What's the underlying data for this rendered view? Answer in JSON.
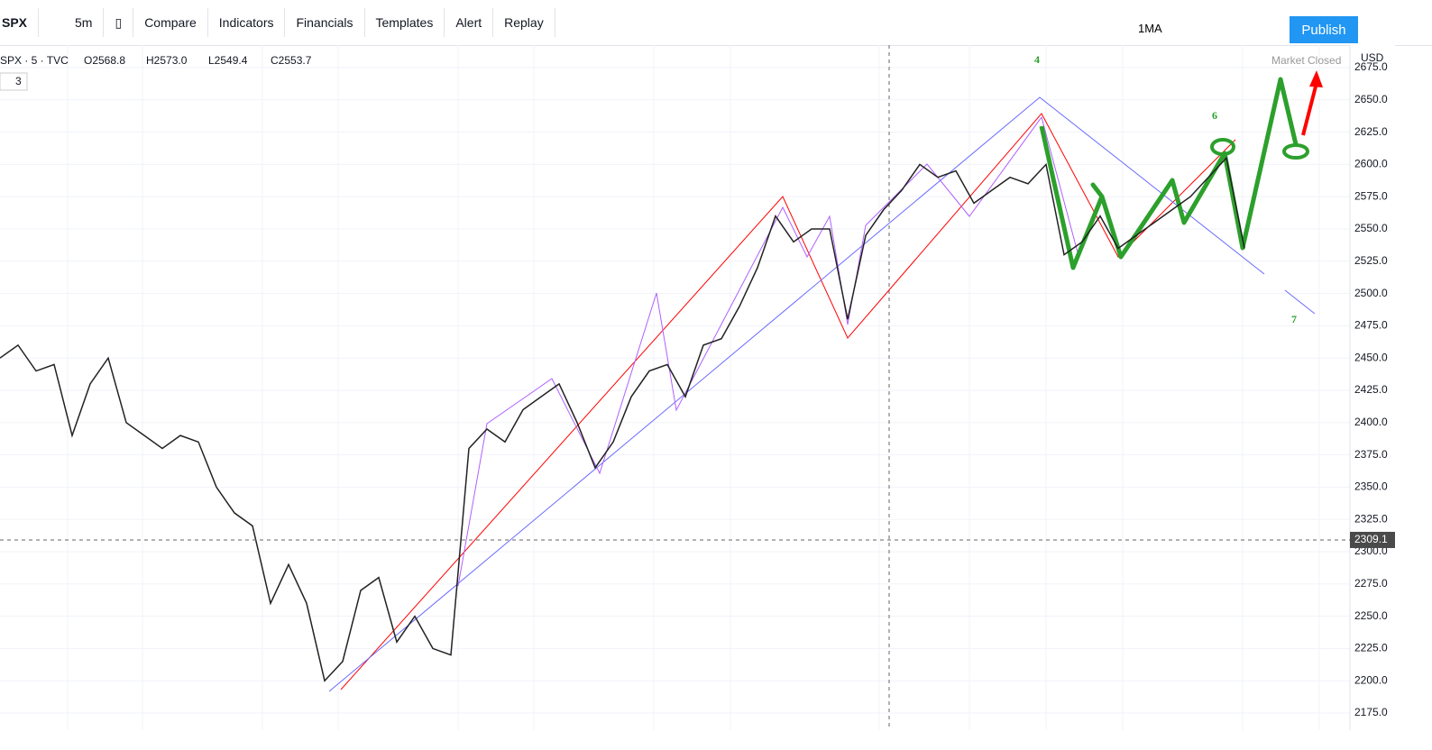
{
  "toolbar": {
    "symbol": "SPX",
    "interval": "5m",
    "items": [
      "Compare",
      "Indicators",
      "Financials",
      "Templates",
      "Alert",
      "Replay"
    ],
    "indicator": "1MA",
    "publish": "Publish"
  },
  "legend": {
    "title": "SPX · 5 · TVC",
    "ohlc": [
      "O2568.8",
      "H2573.0",
      "L2549.4",
      "C2553.7"
    ],
    "count": "3"
  },
  "status": {
    "market": "Market Closed",
    "currency": "USD"
  },
  "annotations": [
    "4",
    "6",
    "7"
  ],
  "crosshair": {
    "value": 2309.1,
    "label": "2309.1"
  },
  "price_axis": {
    "ylim": [
      2175,
      2675
    ],
    "ticks": [
      {
        "value": 2175,
        "label": "2175.0"
      },
      {
        "value": 2200,
        "label": "2200.0"
      },
      {
        "value": 2225,
        "label": "2225.0"
      },
      {
        "value": 2250,
        "label": "2250.0"
      },
      {
        "value": 2275,
        "label": "2275.0"
      },
      {
        "value": 2300,
        "label": "2300.0"
      },
      {
        "value": 2325,
        "label": "2325.0"
      },
      {
        "value": 2350,
        "label": "2350.0"
      },
      {
        "value": 2375,
        "label": "2375.0"
      },
      {
        "value": 2400,
        "label": "2400.0"
      },
      {
        "value": 2425,
        "label": "2425.0"
      },
      {
        "value": 2450,
        "label": "2450.0"
      },
      {
        "value": 2475,
        "label": "2475.0"
      },
      {
        "value": 2500,
        "label": "2500.0"
      },
      {
        "value": 2525,
        "label": "2525.0"
      },
      {
        "value": 2550,
        "label": "2550.0"
      },
      {
        "value": 2575,
        "label": "2575.0"
      },
      {
        "value": 2600,
        "label": "2600.0"
      },
      {
        "value": 2625,
        "label": "2625.0"
      },
      {
        "value": 2650,
        "label": "2650.0"
      },
      {
        "value": 2675,
        "label": "2675.0"
      }
    ]
  },
  "price_series": [
    2450,
    2460,
    2440,
    2445,
    2390,
    2430,
    2450,
    2400,
    2390,
    2380,
    2390,
    2385,
    2350,
    2330,
    2320,
    2260,
    2290,
    2260,
    2200,
    2215,
    2270,
    2280,
    2230,
    2250,
    2225,
    2220,
    2380,
    2395,
    2385,
    2410,
    2420,
    2430,
    2400,
    2365,
    2385,
    2420,
    2440,
    2445,
    2420,
    2460,
    2465,
    2490,
    2520,
    2560,
    2540,
    2550,
    2550,
    2480,
    2545,
    2565,
    2580,
    2600,
    2590,
    2595,
    2570,
    2580,
    2590,
    2585,
    2600,
    2530,
    2540,
    2560,
    2535,
    2545,
    2555,
    2565,
    2575,
    2590,
    2605,
    2535
  ]
}
